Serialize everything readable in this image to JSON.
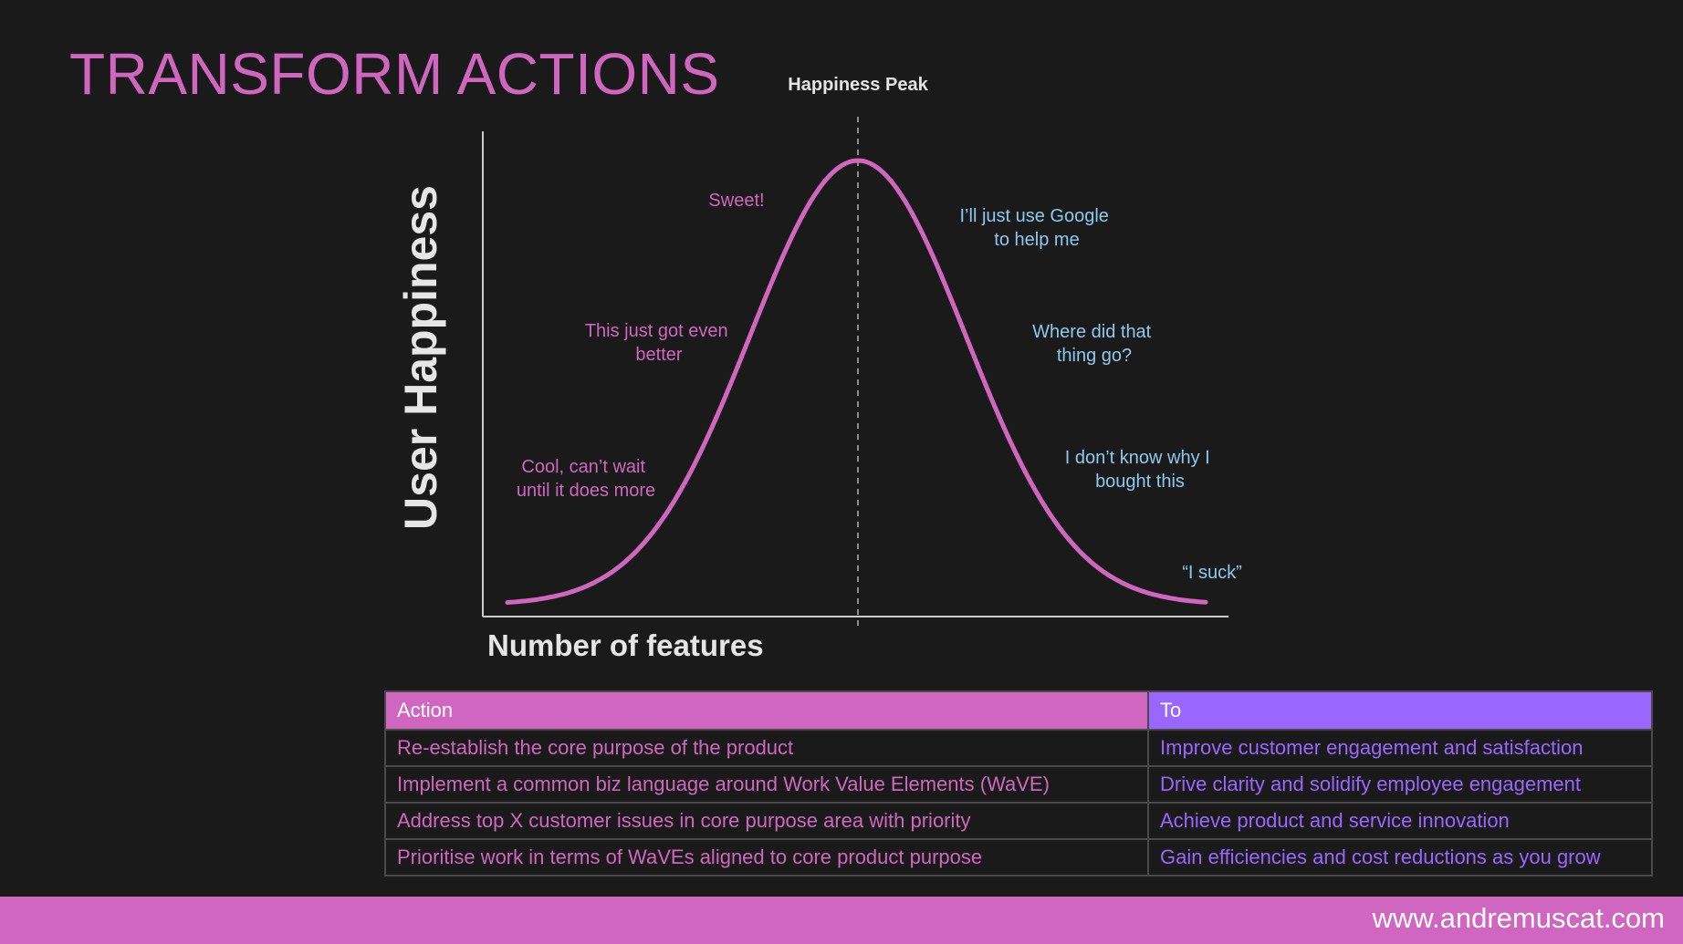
{
  "slide": {
    "title": "TRANSFORM ACTIONS",
    "footer_url": "www.andremuscat.com"
  },
  "colors": {
    "pink": "#d066c0",
    "purple": "#9966ff",
    "blue_text": "#8fc8ee",
    "background": "#1a1a1a",
    "axis": "#cccccc"
  },
  "diagram": {
    "peak_label": "Happiness Peak",
    "y_axis_label": "User Happiness",
    "x_axis_label": "Number of features",
    "left_annotations": [
      {
        "lines": [
          "Sweet!"
        ]
      },
      {
        "lines": [
          "This just got even",
          "better"
        ]
      },
      {
        "lines": [
          "Cool, can’t wait",
          "until it does more"
        ]
      }
    ],
    "right_annotations": [
      {
        "lines": [
          "I’ll just use Google",
          "to help me"
        ]
      },
      {
        "lines": [
          "Where did that",
          "thing go?"
        ]
      },
      {
        "lines": [
          "I don’t know why I",
          "bought this"
        ]
      },
      {
        "lines": [
          "“I suck”"
        ]
      }
    ]
  },
  "table": {
    "headers": {
      "action": "Action",
      "to": "To"
    },
    "rows": [
      {
        "action": "Re-establish the core purpose of the product",
        "to": "Improve customer engagement and satisfaction"
      },
      {
        "action": "Implement a common biz language around Work Value Elements (WaVE)",
        "to": "Drive clarity and solidify employee engagement"
      },
      {
        "action": "Address top X customer issues in core purpose area with priority",
        "to": "Achieve product and service innovation"
      },
      {
        "action": "Prioritise work in terms of WaVEs aligned to core product purpose",
        "to": "Gain efficiencies and cost reductions as you grow"
      }
    ]
  }
}
